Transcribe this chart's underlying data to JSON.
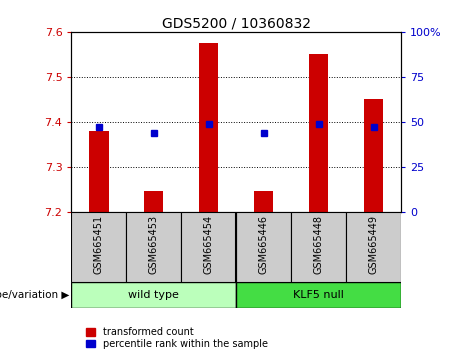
{
  "title": "GDS5200 / 10360832",
  "categories": [
    "GSM665451",
    "GSM665453",
    "GSM665454",
    "GSM665446",
    "GSM665448",
    "GSM665449"
  ],
  "red_values": [
    7.38,
    7.245,
    7.575,
    7.245,
    7.55,
    7.45
  ],
  "blue_values": [
    47,
    44,
    49,
    44,
    49,
    47
  ],
  "ylim_left": [
    7.2,
    7.6
  ],
  "ylim_right": [
    0,
    100
  ],
  "yticks_left": [
    7.2,
    7.3,
    7.4,
    7.5,
    7.6
  ],
  "yticks_right": [
    0,
    25,
    50,
    75,
    100
  ],
  "ytick_labels_right": [
    "0",
    "25",
    "50",
    "75",
    "100%"
  ],
  "bar_bottom": 7.2,
  "bar_color": "#cc0000",
  "dot_color": "#0000cc",
  "group1_label": "wild type",
  "group2_label": "KLF5 null",
  "group1_color": "#bbffbb",
  "group2_color": "#44dd44",
  "xlabel_group": "genotype/variation",
  "legend_red": "transformed count",
  "legend_blue": "percentile rank within the sample",
  "tick_color_left": "#cc0000",
  "tick_color_right": "#0000cc",
  "bar_width": 0.35
}
